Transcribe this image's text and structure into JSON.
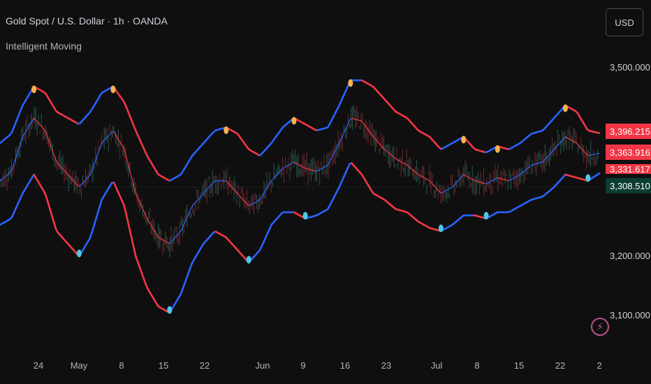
{
  "header": {
    "symbol_line": "Gold Spot / U.S. Dollar · 1h · OANDA",
    "indicator_name": "Intelligent Moving"
  },
  "currency_button": "USD",
  "colors": {
    "background": "#0f0f0f",
    "upper_band_bull": "#2962ff",
    "upper_band_bear": "#f23645",
    "mid_bull": "#2962ff",
    "mid_bear": "#f23645",
    "top_marker": "#f7b34d",
    "bottom_marker": "#4ec8e6"
  },
  "price_labels": [
    {
      "text": "3,396.215",
      "color": "#f23645"
    },
    {
      "text": "3,363.916",
      "color": "#f23645"
    },
    {
      "text": "3,331.617",
      "color": "#f23645"
    },
    {
      "text": "3,308.510",
      "color": "#0b3d30"
    }
  ],
  "chart_data": {
    "type": "line",
    "title": "Gold Spot / U.S. Dollar · 1h · OANDA",
    "indicator": "Intelligent Moving",
    "y_axis": {
      "ticks": [
        "3,500.000",
        "3,200.000",
        "3,100.000"
      ],
      "range": [
        3080,
        3560
      ]
    },
    "x_axis": {
      "ticks": [
        "24",
        "May",
        "8",
        "15",
        "22",
        "Jun",
        "9",
        "16",
        "23",
        "Jul",
        "8",
        "15",
        "22",
        "2"
      ]
    },
    "series": [
      {
        "values": [
          3380,
          3395,
          3440,
          3470,
          3460,
          3430,
          3420,
          3410,
          3430,
          3460,
          3470,
          3445,
          3400,
          3360,
          3330,
          3320,
          3330,
          3360,
          3380,
          3400,
          3405,
          3395,
          3370,
          3360,
          3380,
          3405,
          3420,
          3410,
          3400,
          3405,
          3440,
          3480,
          3480,
          3470,
          3450,
          3430,
          3420,
          3400,
          3390,
          3370,
          3380,
          3390,
          3370,
          3365,
          3375,
          3370,
          3380,
          3395,
          3400,
          3420,
          3440,
          3430,
          3400,
          3396
        ]
      },
      {
        "values": [
          3320,
          3335,
          3390,
          3420,
          3400,
          3350,
          3330,
          3310,
          3330,
          3380,
          3400,
          3370,
          3300,
          3260,
          3230,
          3220,
          3240,
          3280,
          3300,
          3320,
          3320,
          3300,
          3280,
          3290,
          3320,
          3340,
          3350,
          3340,
          3335,
          3345,
          3380,
          3420,
          3415,
          3390,
          3370,
          3355,
          3345,
          3330,
          3320,
          3300,
          3310,
          3330,
          3320,
          3315,
          3325,
          3320,
          3330,
          3345,
          3350,
          3370,
          3390,
          3380,
          3360,
          3364
        ]
      },
      {
        "values": [
          3250,
          3260,
          3300,
          3330,
          3300,
          3240,
          3220,
          3200,
          3230,
          3290,
          3320,
          3280,
          3200,
          3150,
          3120,
          3110,
          3140,
          3190,
          3220,
          3240,
          3230,
          3210,
          3190,
          3210,
          3250,
          3270,
          3270,
          3260,
          3265,
          3275,
          3310,
          3350,
          3330,
          3300,
          3290,
          3275,
          3270,
          3255,
          3245,
          3240,
          3250,
          3265,
          3265,
          3260,
          3270,
          3270,
          3280,
          3290,
          3295,
          3310,
          3330,
          3325,
          3320,
          3332
        ]
      }
    ],
    "current_price": "3,308.510"
  }
}
